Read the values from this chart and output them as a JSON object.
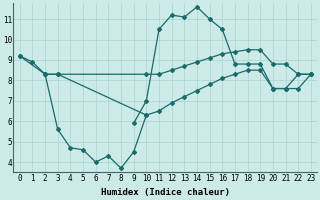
{
  "lines": [
    {
      "x": [
        0,
        1,
        2,
        3,
        10,
        11,
        12,
        13,
        14,
        15,
        16,
        17,
        18,
        19,
        20,
        21,
        22,
        23
      ],
      "y": [
        9.2,
        8.9,
        8.3,
        8.3,
        8.3,
        8.3,
        8.5,
        8.7,
        8.9,
        9.1,
        9.3,
        9.4,
        9.5,
        9.5,
        8.8,
        8.8,
        8.3,
        8.3
      ]
    },
    {
      "x": [
        2,
        3,
        10,
        11,
        12,
        13,
        14,
        15,
        16,
        17,
        18,
        19,
        20,
        21,
        22,
        23
      ],
      "y": [
        8.3,
        8.3,
        6.3,
        6.5,
        6.9,
        7.2,
        7.5,
        7.8,
        8.1,
        8.3,
        8.5,
        8.5,
        7.6,
        7.6,
        7.6,
        8.3
      ]
    },
    {
      "x": [
        0,
        2,
        3,
        4,
        5,
        6,
        7,
        8,
        9,
        10
      ],
      "y": [
        9.2,
        8.3,
        5.6,
        4.7,
        4.6,
        4.0,
        4.3,
        3.7,
        4.5,
        6.3
      ]
    },
    {
      "x": [
        9,
        10,
        11,
        12,
        13,
        14,
        15,
        16,
        17,
        18,
        19,
        20,
        21,
        22,
        23
      ],
      "y": [
        5.9,
        7.0,
        10.5,
        11.2,
        11.1,
        11.6,
        11.0,
        10.5,
        8.8,
        8.8,
        8.8,
        7.6,
        7.6,
        8.3,
        8.3
      ]
    }
  ],
  "color": "#1a6b6b",
  "bg_color": "#cceae8",
  "grid_color": "#aad4d2",
  "xlabel": "Humidex (Indice chaleur)",
  "ylim": [
    3.5,
    11.8
  ],
  "xlim": [
    -0.5,
    23.5
  ],
  "yticks": [
    4,
    5,
    6,
    7,
    8,
    9,
    10,
    11
  ],
  "xticks": [
    0,
    1,
    2,
    3,
    4,
    5,
    6,
    7,
    8,
    9,
    10,
    11,
    12,
    13,
    14,
    15,
    16,
    17,
    18,
    19,
    20,
    21,
    22,
    23
  ]
}
